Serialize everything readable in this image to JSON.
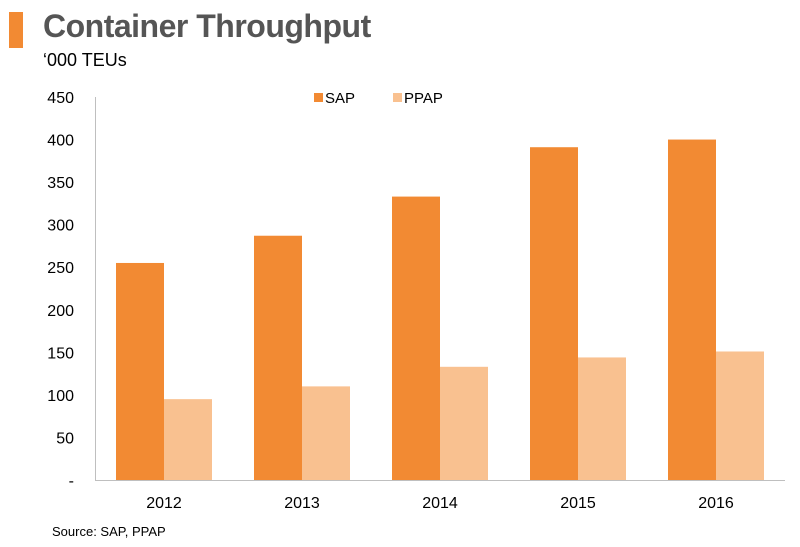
{
  "header": {
    "title": "Container Throughput",
    "unit_label": "‘000 TEUs"
  },
  "footer": {
    "source": "Source: SAP, PPAP"
  },
  "chart_data": {
    "type": "bar",
    "categories": [
      "2012",
      "2013",
      "2014",
      "2015",
      "2016"
    ],
    "series": [
      {
        "name": "SAP",
        "color": "#f28a33",
        "values": [
          255,
          287,
          333,
          391,
          400
        ]
      },
      {
        "name": "PPAP",
        "color": "#f9c190",
        "values": [
          95,
          110,
          133,
          144,
          151
        ]
      }
    ],
    "y_ticks": [
      "-",
      "50",
      "100",
      "150",
      "200",
      "250",
      "300",
      "350",
      "400",
      "450"
    ],
    "ylim": [
      0,
      450
    ],
    "grid": false,
    "legend_position": "top-center"
  }
}
